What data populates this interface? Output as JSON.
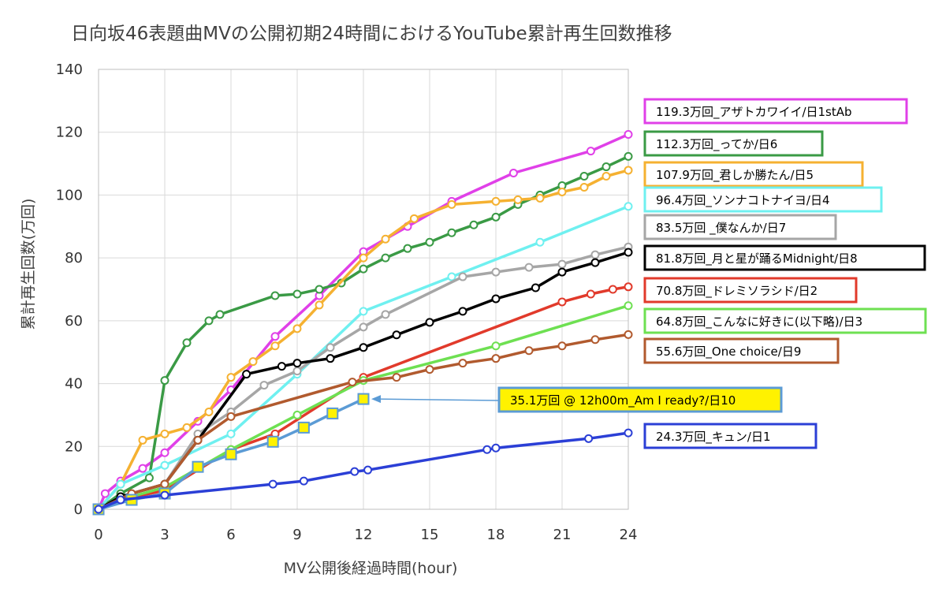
{
  "chart_data": {
    "type": "line",
    "title": "日向坂46表題曲MVの公開初期24時間におけるYouTube累計再生回数推移",
    "xlabel": "MV公開後経過時間(hour)",
    "ylabel": "累計再生回数(万回)",
    "xlim": [
      0,
      24
    ],
    "ylim": [
      0,
      140
    ],
    "xticks": [
      "0",
      "3",
      "6",
      "9",
      "12",
      "15",
      "18",
      "21",
      "24"
    ],
    "yticks": [
      "0",
      "20",
      "40",
      "60",
      "80",
      "100",
      "120",
      "140"
    ],
    "grid": true,
    "legend_position": "right",
    "series": [
      {
        "name": "119.3万回_アザトカワイイ/日1stAb",
        "color": "#e040e8",
        "marker": "circle",
        "x": [
          0,
          0.3,
          1,
          2,
          3,
          4.5,
          6,
          8,
          10,
          12,
          14,
          16,
          18.8,
          22.3,
          24
        ],
        "y": [
          0,
          5,
          9,
          13,
          18,
          28,
          38,
          55,
          68,
          82,
          90,
          98,
          107,
          114,
          119.3
        ]
      },
      {
        "name": "112.3万回_ってか/日6",
        "color": "#3a9a45",
        "marker": "circle",
        "x": [
          0,
          1,
          2.3,
          3,
          4,
          5,
          5.5,
          8,
          9,
          10,
          11,
          12,
          13,
          14,
          15,
          16,
          17,
          18,
          19,
          20,
          21,
          22,
          23,
          24
        ],
        "y": [
          0,
          5,
          10,
          41,
          53,
          60,
          62,
          68,
          68.5,
          70,
          72,
          76.5,
          80,
          83,
          85,
          88,
          90.5,
          93,
          97,
          100,
          103,
          106,
          109,
          112.3
        ]
      },
      {
        "name": "107.9万回_君しか勝たん/日5",
        "color": "#f5b131",
        "marker": "circle",
        "x": [
          0,
          1,
          2,
          3,
          4,
          5,
          6,
          7,
          8,
          9,
          10,
          12,
          13,
          14.3,
          16,
          18,
          19,
          20,
          21,
          22,
          23,
          24
        ],
        "y": [
          0,
          8,
          22,
          24,
          26,
          31,
          42,
          47,
          52,
          57.5,
          65,
          80,
          86,
          92.5,
          97,
          98,
          98.5,
          99,
          101,
          102.5,
          106,
          107.9
        ]
      },
      {
        "name": "96.4万回_ソンナコトナイヨ/日4",
        "color": "#6ff0f0",
        "marker": "circle",
        "x": [
          0,
          1,
          3,
          6,
          9,
          12,
          16,
          20,
          24
        ],
        "y": [
          0,
          8,
          14,
          24,
          43,
          63,
          74,
          85,
          96.4
        ]
      },
      {
        "name": "83.5万回_僕なんか/日7",
        "color": "#a6a6a6",
        "marker": "circle",
        "x": [
          0,
          1,
          3,
          4.5,
          6,
          7.5,
          9,
          10.5,
          12,
          13,
          16.5,
          18,
          19.5,
          21,
          22.5,
          24
        ],
        "y": [
          0,
          4,
          8,
          24,
          31,
          39.5,
          44,
          51.5,
          58,
          62,
          74,
          75.5,
          77,
          78,
          81,
          83.5
        ]
      },
      {
        "name": "81.8万回_月と星が踊るMidnight/日8",
        "color": "#000000",
        "marker": "circle",
        "x": [
          0,
          1,
          3,
          4.5,
          6.7,
          8.3,
          9,
          10.5,
          12,
          13.5,
          15,
          16.5,
          18,
          19.8,
          21,
          22.5,
          24
        ],
        "y": [
          0,
          4,
          8,
          22,
          43,
          45.5,
          46.5,
          48,
          51.5,
          55.5,
          59.5,
          63,
          67,
          70.5,
          75.5,
          78.5,
          81.8
        ]
      },
      {
        "name": "70.8万回_ドレミソラシド/日2",
        "color": "#e13a2b",
        "marker": "circle",
        "x": [
          0,
          1,
          3,
          6,
          8,
          12,
          21,
          22.3,
          23.3,
          24
        ],
        "y": [
          0,
          3,
          6,
          19,
          24,
          42,
          66,
          68.5,
          70,
          70.8
        ]
      },
      {
        "name": "64.8万回_こんなに好きに(以下略)/日3",
        "color": "#6ee052",
        "marker": "circle",
        "x": [
          0,
          1,
          3,
          6,
          9,
          12,
          18,
          24
        ],
        "y": [
          0,
          3,
          7,
          19,
          30,
          41,
          52,
          64.8
        ]
      },
      {
        "name": "55.6万回_One choice/日9",
        "color": "#b15a2e",
        "marker": "circle",
        "x": [
          0,
          1.5,
          3,
          4.5,
          6,
          11.5,
          13.5,
          15,
          16.5,
          18,
          19.5,
          21,
          22.5,
          24
        ],
        "y": [
          0,
          5,
          8,
          22,
          29.5,
          40.5,
          42,
          44.5,
          46.5,
          48,
          50.5,
          52,
          54,
          55.6
        ]
      },
      {
        "name": "35.1万回 @ 12h00m_Am I ready?/日10",
        "color": "#5b9bd5",
        "marker": "square",
        "x": [
          0,
          1.5,
          3,
          4.5,
          6,
          7.9,
          9.3,
          10.6,
          12
        ],
        "y": [
          0,
          3,
          5,
          13.5,
          17.5,
          21.5,
          26,
          30.5,
          35.1
        ]
      },
      {
        "name": "24.3万回_キュン/日1",
        "color": "#2b3fd6",
        "marker": "circle",
        "x": [
          0,
          1,
          3,
          7.9,
          9.3,
          11.6,
          12.2,
          17.6,
          18,
          22.2,
          24
        ],
        "y": [
          0,
          3,
          4.5,
          8,
          9,
          12,
          12.5,
          19,
          19.5,
          22.5,
          24.3
        ]
      }
    ],
    "legend": [
      {
        "label": "119.3万回_アザトカワイイ/日1stAb",
        "border": "#e040e8",
        "fill": "#ffffff"
      },
      {
        "label": "112.3万回_ってか/日6",
        "border": "#3a9a45",
        "fill": "#ffffff"
      },
      {
        "label": "107.9万回_君しか勝たん/日5",
        "border": "#f5b131",
        "fill": "#ffffff"
      },
      {
        "label": "96.4万回_ソンナコトナイヨ/日4",
        "border": "#6ff0f0",
        "fill": "#ffffff"
      },
      {
        "label": "83.5万回 _僕なんか/日7",
        "border": "#a6a6a6",
        "fill": "#ffffff"
      },
      {
        "label": "81.8万回_月と星が踊るMidnight/日8",
        "border": "#000000",
        "fill": "#ffffff"
      },
      {
        "label": "70.8万回_ドレミソラシド/日2",
        "border": "#e13a2b",
        "fill": "#ffffff"
      },
      {
        "label": "64.8万回_こんなに好きに(以下略)/日3",
        "border": "#6ee052",
        "fill": "#ffffff"
      },
      {
        "label": "55.6万回_One choice/日9",
        "border": "#b15a2e",
        "fill": "#ffffff"
      },
      {
        "label": "35.1万回 @ 12h00m_Am I ready?/日10",
        "border": "#5b9bd5",
        "fill": "#fff200"
      },
      {
        "label": "24.3万回_キュン/日1",
        "border": "#2b3fd6",
        "fill": "#ffffff"
      }
    ]
  }
}
